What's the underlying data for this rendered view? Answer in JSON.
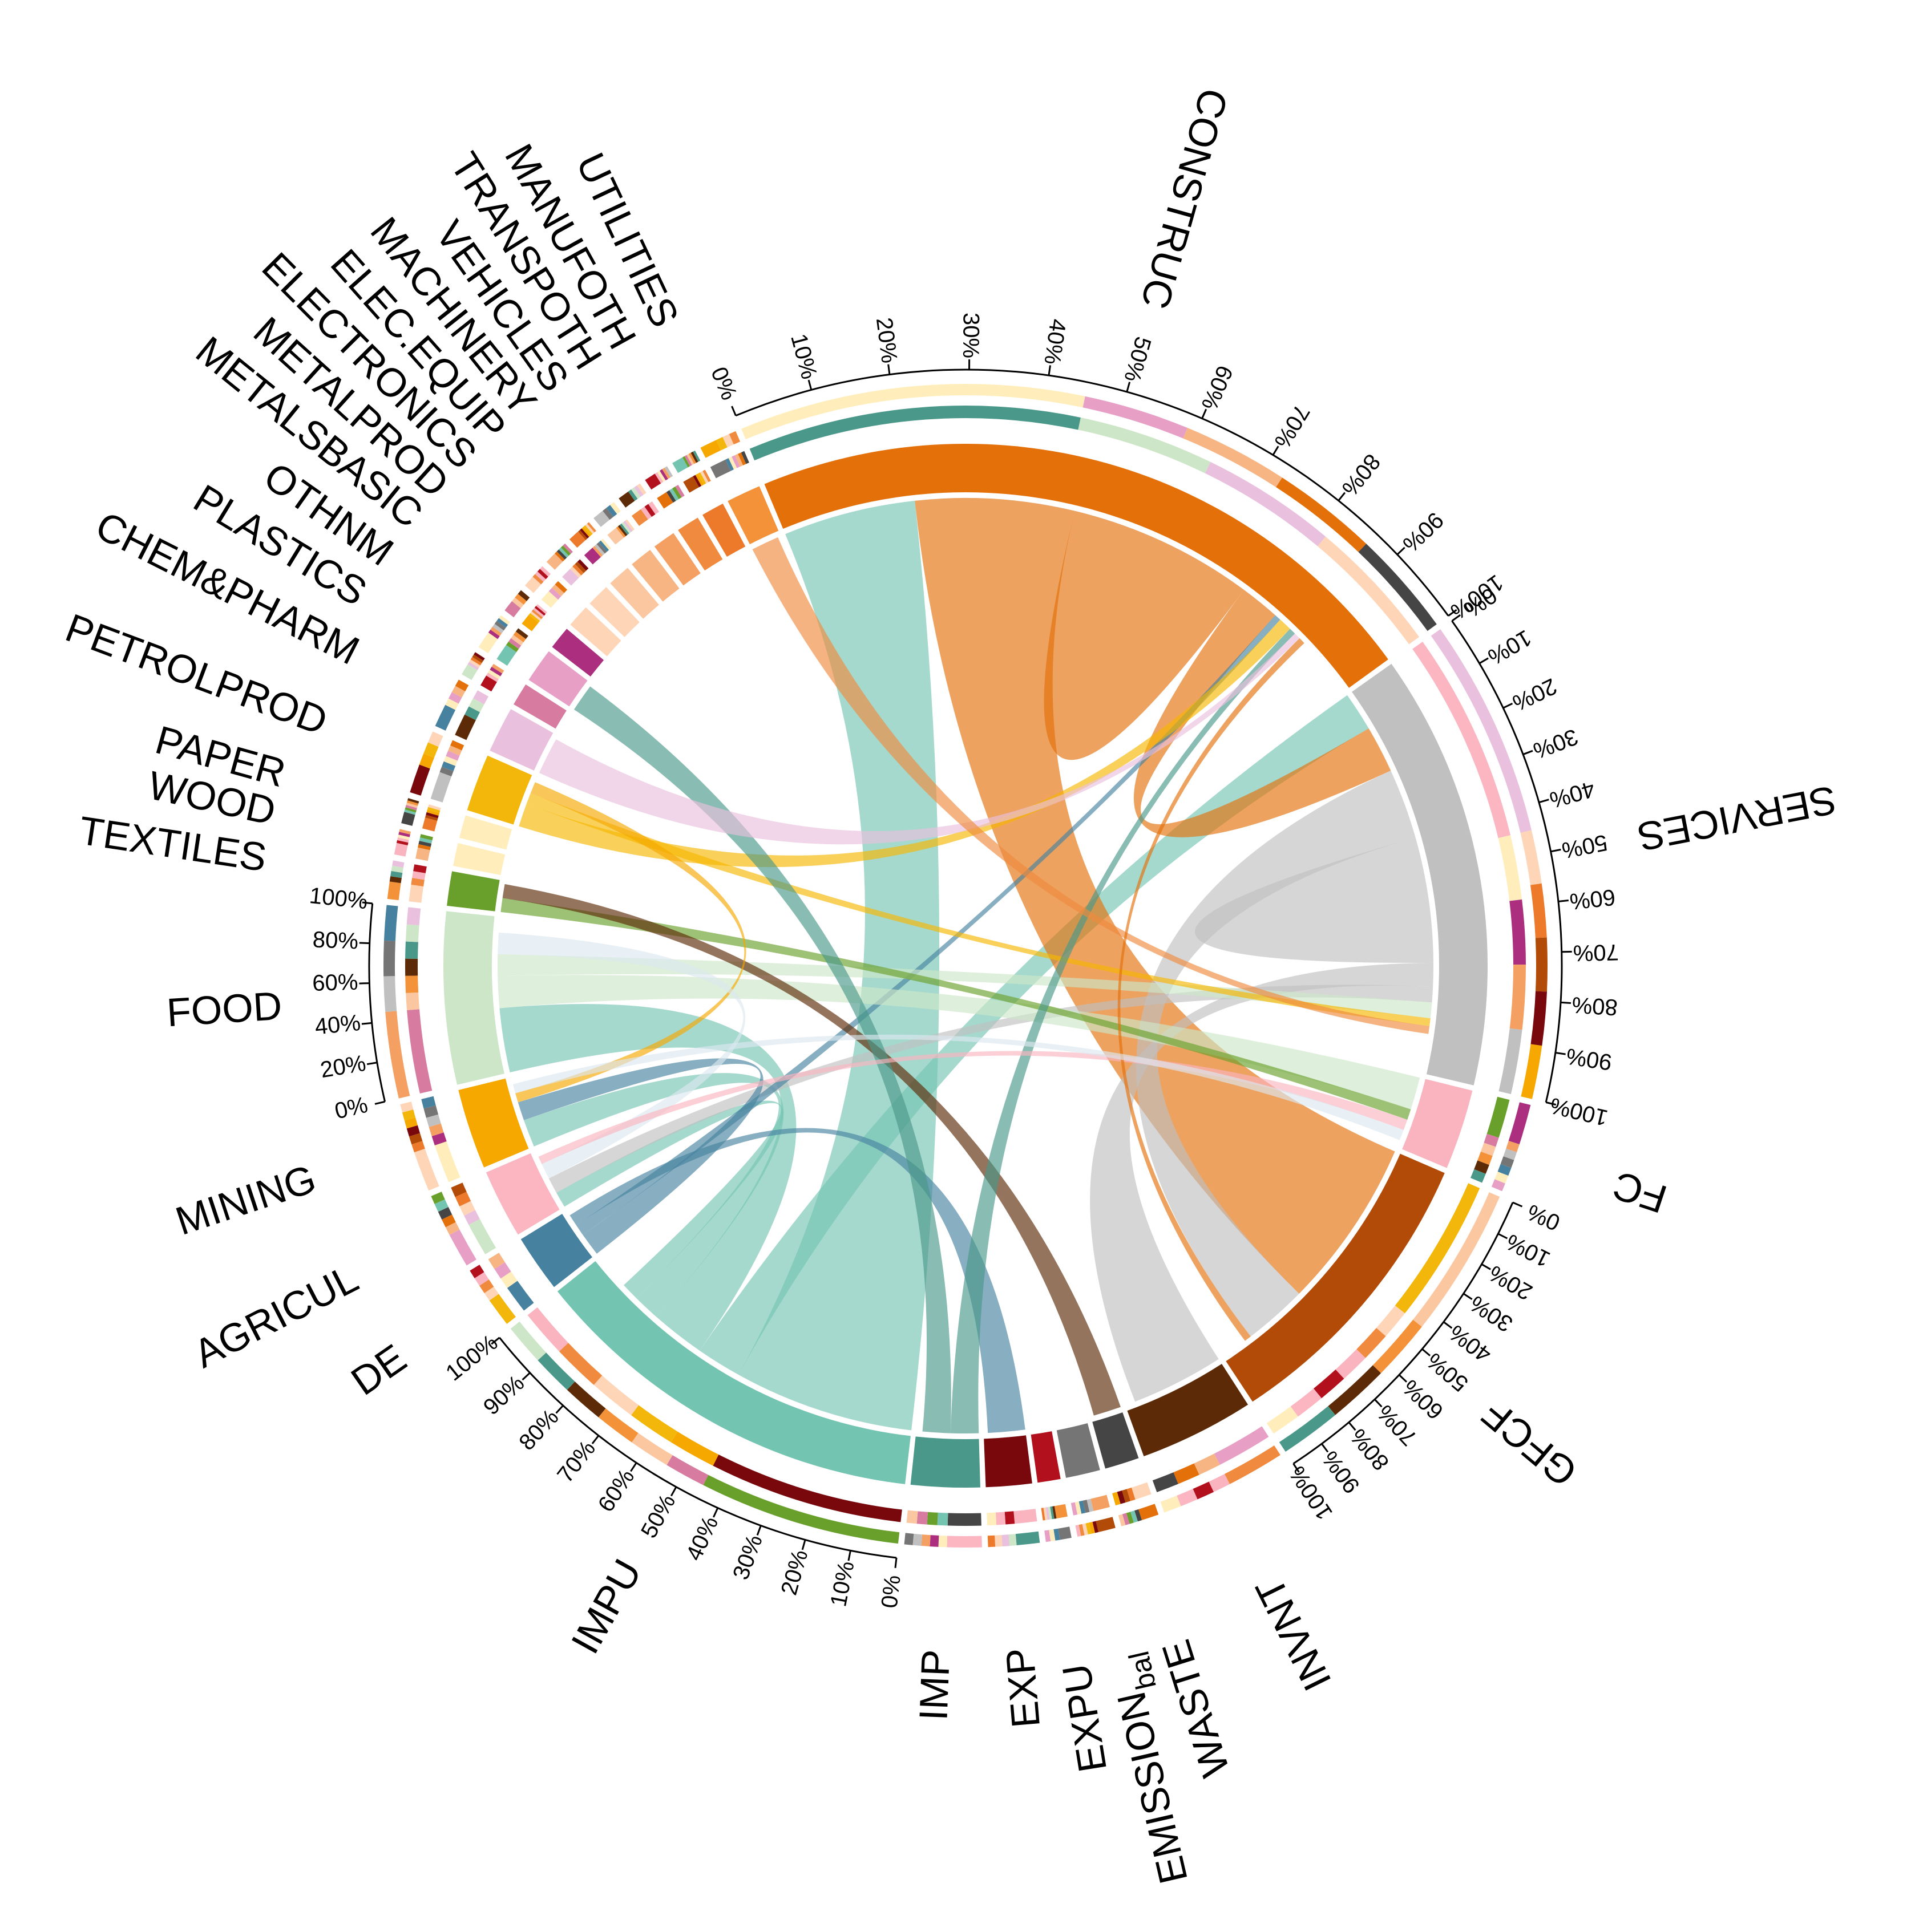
{
  "diagram": {
    "type": "chord",
    "sectors": [
      {
        "label": "DE",
        "color": "#4682a0",
        "angle": 5
      },
      {
        "label": "AGRICUL",
        "color": "#fbb6c1",
        "angle": 6
      },
      {
        "label": "MINING",
        "color": "#f6a800",
        "angle": 7
      },
      {
        "label": "FOOD",
        "color": "#cde6c7",
        "angle": 15
      },
      {
        "label": "TEXTILES",
        "color": "#69a02b",
        "angle": 3
      },
      {
        "label": "WOOD",
        "color": "#ffeebc",
        "angle": 2
      },
      {
        "label": "PAPER",
        "color": "#ffeebc",
        "angle": 2
      },
      {
        "label": "PETROLPROD",
        "color": "#f2b70a",
        "angle": 5
      },
      {
        "label": "CHEM&PHARM",
        "color": "#e9c0dd",
        "angle": 4
      },
      {
        "label": "PLASTICS",
        "color": "#d77ca0",
        "angle": 2
      },
      {
        "label": "OTHNM",
        "color": "#e89fc6",
        "angle": 3
      },
      {
        "label": "METALSBASIC",
        "color": "#ab2f7e",
        "angle": 2
      },
      {
        "label": "METALPROD",
        "color": "#ffd5b8",
        "angle": 2
      },
      {
        "label": "ELECTRONICS",
        "color": "#ffd5b8",
        "angle": 2
      },
      {
        "label": "ELEC.EQUIP",
        "color": "#fbc7a0",
        "angle": 2
      },
      {
        "label": "MACHINERY",
        "color": "#f6b583",
        "angle": 2
      },
      {
        "label": "VEHICLES",
        "color": "#f5a063",
        "angle": 2
      },
      {
        "label": "TRANSPOTH",
        "color": "#f08a3e",
        "angle": 2
      },
      {
        "label": "MANUFOTH",
        "color": "#ec7a2a",
        "angle": 2
      },
      {
        "label": "UTILITIES",
        "color": "#f4923a",
        "angle": 3
      },
      {
        "label": "CONSTRUC",
        "color": "#e4700a",
        "angle": 60
      },
      {
        "label": "SERVICES",
        "color": "#c0c0c0",
        "angle": 38
      },
      {
        "label": "FC",
        "color": "#fab4bf",
        "angle": 7
      },
      {
        "label": "GFCF",
        "color": "#b24b07",
        "angle": 26
      },
      {
        "label": "INVNT",
        "color": "#5c2a06",
        "angle": 10
      },
      {
        "label": "WASTE",
        "color": "#454545",
        "angle": 3
      },
      {
        "label": "EMISSION",
        "label_sub": "bal",
        "color": "#757575",
        "angle": 3
      },
      {
        "label": "EXPU",
        "color": "#b2101d",
        "angle": 2
      },
      {
        "label": "EXP",
        "color": "#79080d",
        "angle": 4
      },
      {
        "label": "IMP",
        "color": "#4a9889",
        "angle": 6
      },
      {
        "label": "IMPU",
        "color": "#74c4b2",
        "angle": 35
      }
    ],
    "percent_ticks": [
      "0%",
      "10%",
      "20%",
      "30%",
      "40%",
      "50%",
      "60%",
      "70%",
      "80%",
      "90%",
      "100%"
    ],
    "food_percent_ticks": [
      "0%",
      "20%",
      "40%",
      "60%",
      "80%",
      "100%"
    ],
    "flows": [
      {
        "from": "IMPU",
        "to": "CONSTRUC",
        "weight": 20,
        "color": "#74c4b2"
      },
      {
        "from": "IMPU",
        "to": "SERVICES",
        "weight": 5,
        "color": "#74c4b2"
      },
      {
        "from": "IMPU",
        "to": "FOOD",
        "weight": 6,
        "color": "#74c4b2"
      },
      {
        "from": "IMPU",
        "to": "MINING",
        "weight": 3,
        "color": "#74c4b2"
      },
      {
        "from": "IMPU",
        "to": "AGRICUL",
        "weight": 2,
        "color": "#74c4b2"
      },
      {
        "from": "CONSTRUC",
        "to": "GFCF",
        "weight": 24,
        "color": "#e4700a"
      },
      {
        "from": "CONSTRUC",
        "to": "CONSTRUC",
        "weight": 14,
        "color": "#e4700a"
      },
      {
        "from": "CONSTRUC",
        "to": "SERVICES",
        "weight": 6,
        "color": "#e4700a"
      },
      {
        "from": "SERVICES",
        "to": "GFCF",
        "weight": 9,
        "color": "#c0c0c0"
      },
      {
        "from": "SERVICES",
        "to": "SERVICES",
        "weight": 8,
        "color": "#c0c0c0"
      },
      {
        "from": "SERVICES",
        "to": "INVNT",
        "weight": 3,
        "color": "#c0c0c0"
      },
      {
        "from": "SERVICES",
        "to": "AGRICUL",
        "weight": 2,
        "color": "#c0c0c0"
      },
      {
        "from": "DE",
        "to": "MINING",
        "weight": 2,
        "color": "#4682a0"
      },
      {
        "from": "DE",
        "to": "CONSTRUC",
        "weight": 1,
        "color": "#4682a0"
      },
      {
        "from": "DE",
        "to": "EXP",
        "weight": 1,
        "color": "#4682a0"
      },
      {
        "from": "FOOD",
        "to": "FC",
        "weight": 3,
        "color": "#cde6c7"
      },
      {
        "from": "FOOD",
        "to": "SERVICES",
        "weight": 2,
        "color": "#cde6c7"
      },
      {
        "from": "PETROLPROD",
        "to": "CONSTRUC",
        "weight": 2,
        "color": "#f6b700"
      },
      {
        "from": "PETROLPROD",
        "to": "SERVICES",
        "weight": 1,
        "color": "#f6b700"
      },
      {
        "from": "TEXTILES",
        "to": "FC",
        "weight": 1,
        "color": "#69a02b"
      },
      {
        "from": "TEXTILES",
        "to": "WASTE",
        "weight": 1,
        "color": "#5c2a06"
      },
      {
        "from": "MINING",
        "to": "PETROLPROD",
        "weight": 1,
        "color": "#f6a800"
      },
      {
        "from": "IMP",
        "to": "CONSTRUC",
        "weight": 1,
        "color": "#4a9889"
      },
      {
        "from": "IMP",
        "to": "OTHNM",
        "weight": 1,
        "color": "#4a9889"
      },
      {
        "from": "CHEM&PHARM",
        "to": "CONSTRUC",
        "weight": 1,
        "color": "#e9c0dd"
      },
      {
        "from": "UTILITIES",
        "to": "SERVICES",
        "weight": 1,
        "color": "#f08a3e"
      },
      {
        "from": "AGRICUL",
        "to": "FOOD",
        "weight": 2,
        "color": "#dbe8f0"
      },
      {
        "from": "FC",
        "to": "AGRICUL",
        "weight": 1,
        "color": "#fab4bf"
      },
      {
        "from": "GFCF",
        "to": "CONSTRUC",
        "weight": 1,
        "color": "#e4700a"
      },
      {
        "from": "MINING",
        "to": "FC",
        "weight": 1,
        "color": "#dbe8f0"
      }
    ]
  }
}
